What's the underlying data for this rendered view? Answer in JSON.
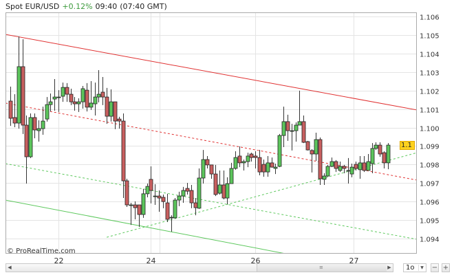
{
  "header": {
    "instrument": "Spot EUR/USD",
    "change": "+0.12%",
    "time": "09:40",
    "gmt_time": "(07:40 GMT)",
    "change_color": "#3c9a3c"
  },
  "copyright": "© ProRealTime.com",
  "current_price_label": "1.1",
  "controls": {
    "timeframe": "1o",
    "zoom_out": "−",
    "zoom_in": "+",
    "scroll_left": "◀",
    "scroll_right": "▶",
    "grip": "≡"
  },
  "chart_data": {
    "type": "candlestick",
    "title": "",
    "xlabel": "",
    "ylabel": "",
    "ylim": [
      1.0932,
      1.1062
    ],
    "y_ticks": [
      "1.106",
      "1.105",
      "1.104",
      "1.103",
      "1.102",
      "1.101",
      "1.100",
      "1.099",
      "1.098",
      "1.097",
      "1.096",
      "1.095",
      "1.094"
    ],
    "x_ticks": [
      {
        "label": "22",
        "candle": 12
      },
      {
        "label": "24",
        "candle": 35
      },
      {
        "label": "26",
        "candle": 61
      },
      {
        "label": "27",
        "candle": 85.5
      }
    ],
    "grid": true,
    "colors": {
      "up": "#5cc55c",
      "down": "#c85f5f",
      "trend_red": "#e03030",
      "trend_green": "#5cc85c",
      "current": "#ffd21e"
    },
    "candles_ohlc": [
      [
        1.10143,
        1.10221,
        1.10009,
        1.1005
      ],
      [
        1.10054,
        1.1018,
        1.10002,
        1.10024
      ],
      [
        1.10024,
        1.10492,
        1.09994,
        1.10329
      ],
      [
        1.10329,
        1.10477,
        1.09965,
        1.10013
      ],
      [
        1.10013,
        1.10065,
        1.09697,
        1.09842
      ],
      [
        1.09842,
        1.10076,
        1.09835,
        1.10054
      ],
      [
        1.10054,
        1.10076,
        1.09942,
        1.09987
      ],
      [
        1.09983,
        1.10039,
        1.09924,
        1.09994
      ],
      [
        1.09994,
        1.10113,
        1.09961,
        1.10035
      ],
      [
        1.10046,
        1.10165,
        1.10032,
        1.10124
      ],
      [
        1.10124,
        1.10184,
        1.10087,
        1.10139
      ],
      [
        1.10154,
        1.10262,
        1.10091,
        1.10165
      ],
      [
        1.10165,
        1.10202,
        1.10084,
        1.10165
      ],
      [
        1.10169,
        1.10243,
        1.10139,
        1.10217
      ],
      [
        1.10217,
        1.1024,
        1.10139,
        1.1018
      ],
      [
        1.1018,
        1.1021,
        1.10121,
        1.10139
      ],
      [
        1.10139,
        1.10165,
        1.10091,
        1.10128
      ],
      [
        1.10128,
        1.10158,
        1.10084,
        1.10139
      ],
      [
        1.10139,
        1.10225,
        1.10102,
        1.1021
      ],
      [
        1.10202,
        1.1024,
        1.10087,
        1.1011
      ],
      [
        1.1011,
        1.10251,
        1.10095,
        1.10132
      ],
      [
        1.10128,
        1.10243,
        1.10065,
        1.10165
      ],
      [
        1.10165,
        1.1031,
        1.10136,
        1.1018
      ],
      [
        1.10191,
        1.10273,
        1.10121,
        1.10165
      ],
      [
        1.10165,
        1.10214,
        1.1002,
        1.10061
      ],
      [
        1.10061,
        1.10206,
        1.10032,
        1.10139
      ],
      [
        1.10139,
        1.10139,
        1.09991,
        1.10035
      ],
      [
        1.10046,
        1.10058,
        1.09994,
        1.10035
      ],
      [
        1.10035,
        1.10076,
        1.09619,
        1.09712
      ],
      [
        1.09712,
        1.09723,
        1.09571,
        1.09582
      ],
      [
        1.09582,
        1.09593,
        1.09474,
        1.09582
      ],
      [
        1.09582,
        1.09601,
        1.09504,
        1.09567
      ],
      [
        1.09582,
        1.09582,
        1.09463,
        1.0953
      ],
      [
        1.0953,
        1.09668,
        1.09512,
        1.09642
      ],
      [
        1.09642,
        1.09697,
        1.09623,
        1.09682
      ],
      [
        1.0972,
        1.0979,
        1.0959,
        1.0966
      ],
      [
        1.0963,
        1.09694,
        1.09582,
        1.0963
      ],
      [
        1.0963,
        1.0966,
        1.09545,
        1.09619
      ],
      [
        1.09623,
        1.09638,
        1.09564,
        1.096
      ],
      [
        1.09593,
        1.09642,
        1.09489,
        1.09504
      ],
      [
        1.09515,
        1.09526,
        1.09437,
        1.09515
      ],
      [
        1.09512,
        1.09619,
        1.09508,
        1.09608
      ],
      [
        1.09608,
        1.09653,
        1.09575,
        1.0963
      ],
      [
        1.0963,
        1.09679,
        1.09593,
        1.0966
      ],
      [
        1.09671,
        1.09701,
        1.09638,
        1.09656
      ],
      [
        1.0966,
        1.0969,
        1.09564,
        1.09593
      ],
      [
        1.09593,
        1.09619,
        1.09526,
        1.09567
      ],
      [
        1.09564,
        1.09779,
        1.0956,
        1.09727
      ],
      [
        1.09727,
        1.09879,
        1.09697,
        1.09827
      ],
      [
        1.09827,
        1.09846,
        1.09779,
        1.09798
      ],
      [
        1.09798,
        1.09798,
        1.09723,
        1.09749
      ],
      [
        1.09749,
        1.09798,
        1.0963,
        1.09638
      ],
      [
        1.09645,
        1.09768,
        1.09638,
        1.0969
      ],
      [
        1.0969,
        1.09768,
        1.09612,
        1.09619
      ],
      [
        1.09619,
        1.09731,
        1.09586,
        1.09697
      ],
      [
        1.09697,
        1.09809,
        1.09697,
        1.09779
      ],
      [
        1.09779,
        1.09872,
        1.09772,
        1.09838
      ],
      [
        1.09846,
        1.09898,
        1.09786,
        1.09809
      ],
      [
        1.09809,
        1.09827,
        1.09768,
        1.09816
      ],
      [
        1.09816,
        1.09864,
        1.09786,
        1.09846
      ],
      [
        1.09857,
        1.09864,
        1.09816,
        1.09838
      ],
      [
        1.09846,
        1.09872,
        1.09779,
        1.09838
      ],
      [
        1.09838,
        1.09879,
        1.09742,
        1.0976
      ],
      [
        1.09801,
        1.09827,
        1.09734,
        1.0976
      ],
      [
        1.0976,
        1.09846,
        1.09734,
        1.09809
      ],
      [
        1.09809,
        1.09838,
        1.09783,
        1.09786
      ],
      [
        1.09779,
        1.09805,
        1.09749,
        1.09786
      ],
      [
        1.0979,
        1.09965,
        1.09786,
        1.09957
      ],
      [
        1.09957,
        1.10113,
        1.09894,
        1.10032
      ],
      [
        1.10032,
        1.10069,
        1.09928,
        1.09983
      ],
      [
        1.09983,
        1.1002,
        1.09876,
        1.09983
      ],
      [
        1.09983,
        1.10028,
        1.09924,
        1.10013
      ],
      [
        1.10013,
        1.10199,
        1.10013,
        1.10032
      ],
      [
        1.10032,
        1.10065,
        1.09916,
        1.0992
      ],
      [
        1.09924,
        1.09928,
        1.09876,
        1.09879
      ],
      [
        1.09876,
        1.09883,
        1.09757,
        1.09857
      ],
      [
        1.09857,
        1.09972,
        1.0982,
        1.09935
      ],
      [
        1.09935,
        1.09946,
        1.0969,
        1.09723
      ],
      [
        1.0972,
        1.09753,
        1.0969,
        1.09738
      ],
      [
        1.09738,
        1.09798,
        1.09734,
        1.0979
      ],
      [
        1.0979,
        1.09838,
        1.09786,
        1.09816
      ],
      [
        1.09816,
        1.09824,
        1.0976,
        1.09779
      ],
      [
        1.09768,
        1.09816,
        1.0976,
        1.0979
      ],
      [
        1.0979,
        1.09798,
        1.09753,
        1.09779
      ],
      [
        1.09768,
        1.09835,
        1.09697,
        1.09768
      ],
      [
        1.09749,
        1.09805,
        1.09731,
        1.09786
      ],
      [
        1.09801,
        1.09816,
        1.09768,
        1.09779
      ],
      [
        1.09772,
        1.09846,
        1.09723,
        1.09809
      ],
      [
        1.09809,
        1.09846,
        1.0976,
        1.09768
      ],
      [
        1.09768,
        1.09857,
        1.09768,
        1.09816
      ],
      [
        1.09805,
        1.09916,
        1.09753,
        1.09887
      ],
      [
        1.09887,
        1.0992,
        1.09879,
        1.09905
      ],
      [
        1.09905,
        1.0992,
        1.09842,
        1.09857
      ],
      [
        1.09864,
        1.09872,
        1.09779,
        1.09809
      ],
      [
        1.09809,
        1.09916,
        1.09775,
        1.09905
      ]
    ],
    "trendlines": [
      {
        "style": "solid",
        "color": "red",
        "from": [
          -1.2,
          1.10503
        ],
        "to": [
          101.2,
          1.10095
        ]
      },
      {
        "style": "dashed",
        "color": "red",
        "from": [
          -1.2,
          1.10132
        ],
        "to": [
          101.2,
          1.09716
        ]
      },
      {
        "style": "dashed",
        "color": "green",
        "from": [
          -1.2,
          1.09805
        ],
        "to": [
          101.2,
          1.09396
        ]
      },
      {
        "style": "solid",
        "color": "green",
        "from": [
          -1.2,
          1.09608
        ],
        "to": [
          69.3,
          1.09315
        ]
      },
      {
        "style": "dashed",
        "color": "green",
        "from": [
          24,
          1.09407
        ],
        "to": [
          101.2,
          1.09864
        ]
      }
    ],
    "current_price": 1.09905
  }
}
